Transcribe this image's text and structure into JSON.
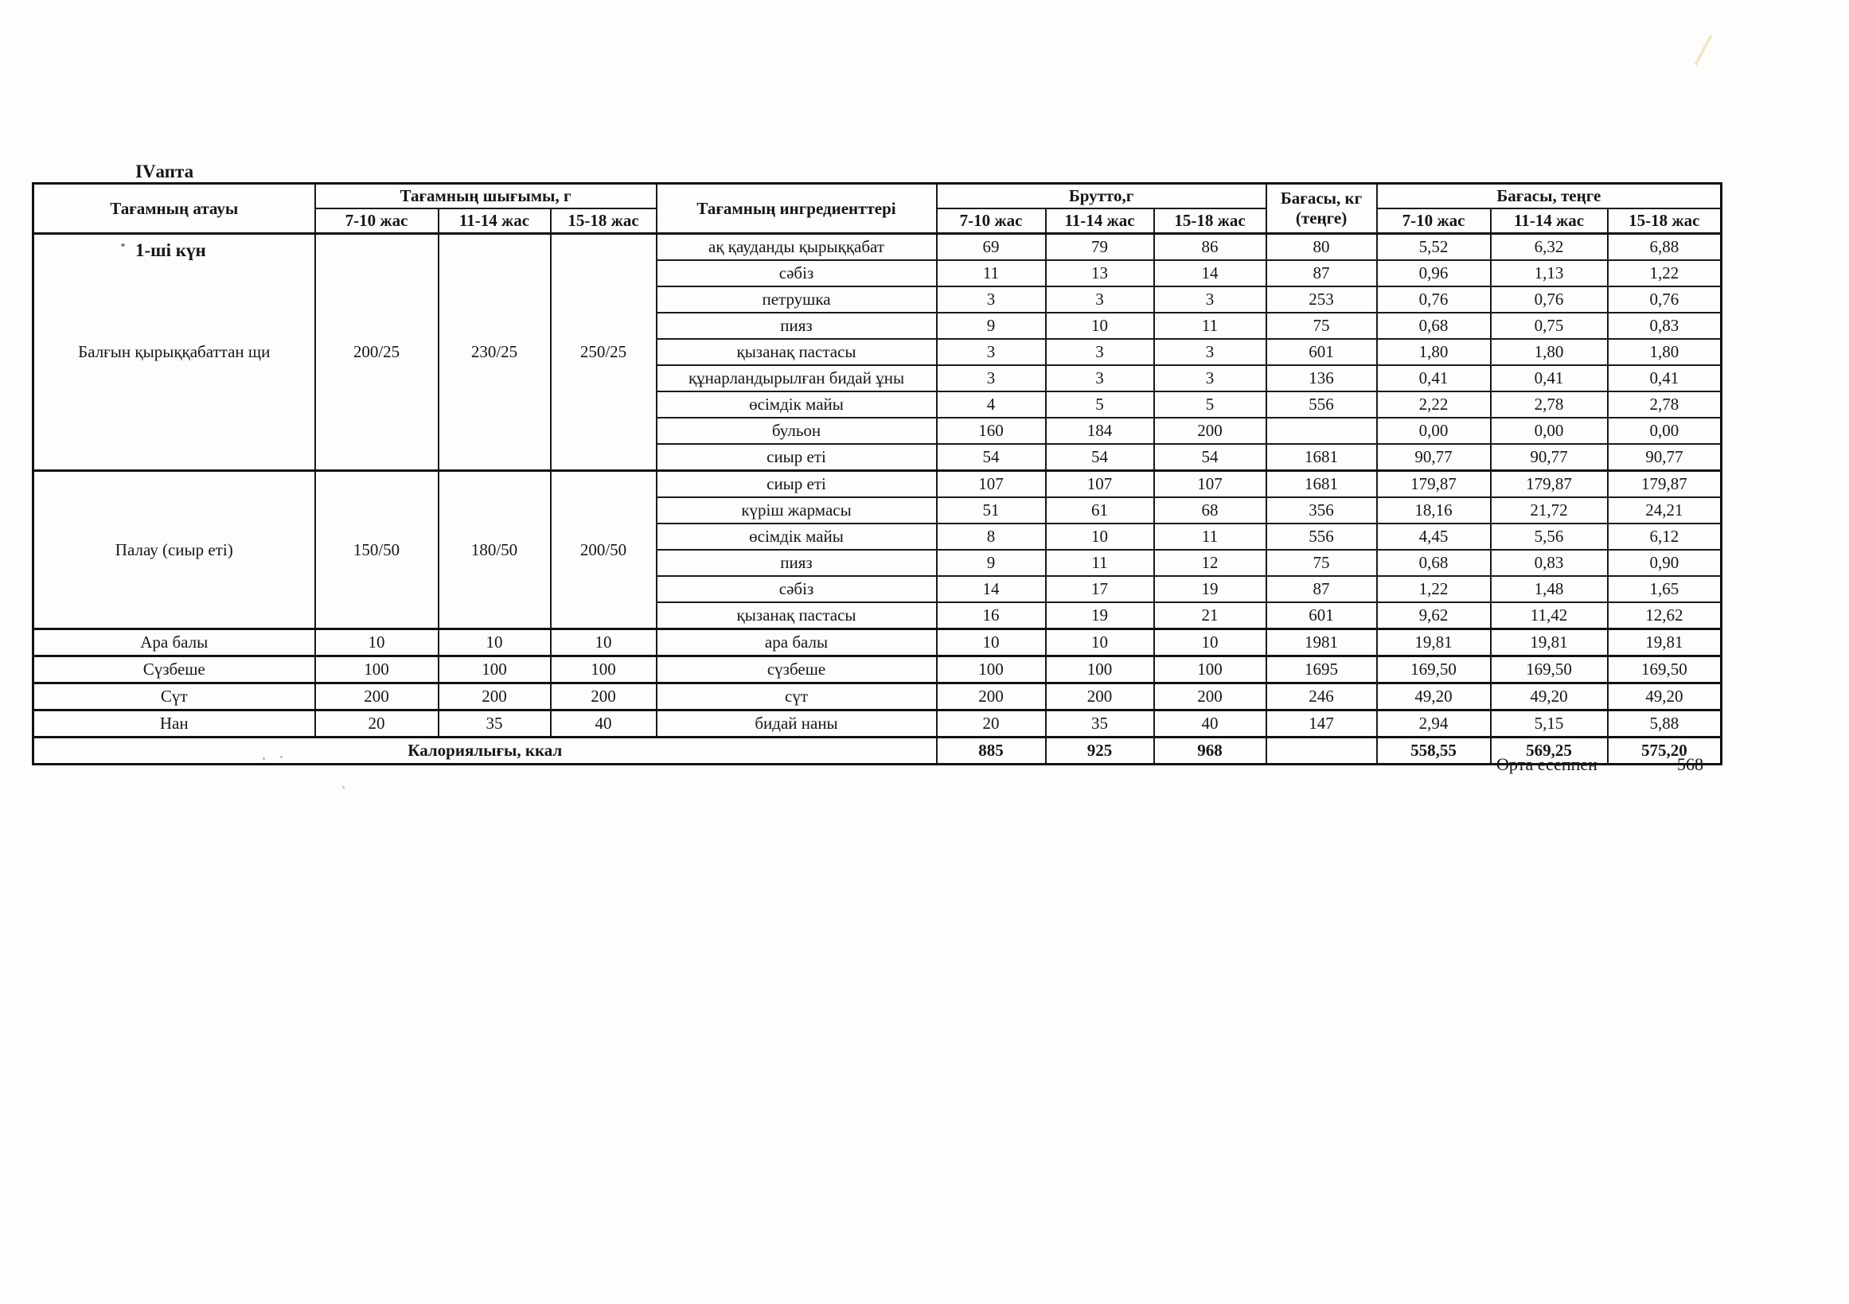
{
  "page": {
    "week_title": "IVапта",
    "day_title": "1-ші күн",
    "footer": {
      "label": "Орта есеппен",
      "value": "568"
    }
  },
  "table": {
    "headers": {
      "dish_name": "Тағамның атауы",
      "dish_output": "Тағамның шығымы, г",
      "ingredients": "Тағамның ингредиенттері",
      "gross": "Брутто,г",
      "price_kg_line1": "Бағасы, кг",
      "price_kg_line2": "(теңге)",
      "price_tenge": "Бағасы, теңге",
      "age_groups": [
        "7-10 жас",
        "11-14 жас",
        "15-18 жас"
      ]
    },
    "dishes": [
      {
        "name": "Балғын қырыққабаттан щи",
        "output": [
          "200/25",
          "230/25",
          "250/25"
        ],
        "ingredients": [
          {
            "name": "ақ қауданды қырыққабат",
            "gross": [
              "69",
              "79",
              "86"
            ],
            "price_kg": "80",
            "price": [
              "5,52",
              "6,32",
              "6,88"
            ]
          },
          {
            "name": "сәбіз",
            "gross": [
              "11",
              "13",
              "14"
            ],
            "price_kg": "87",
            "price": [
              "0,96",
              "1,13",
              "1,22"
            ]
          },
          {
            "name": "петрушка",
            "gross": [
              "3",
              "3",
              "3"
            ],
            "price_kg": "253",
            "price": [
              "0,76",
              "0,76",
              "0,76"
            ]
          },
          {
            "name": "пияз",
            "gross": [
              "9",
              "10",
              "11"
            ],
            "price_kg": "75",
            "price": [
              "0,68",
              "0,75",
              "0,83"
            ]
          },
          {
            "name": "қызанақ пастасы",
            "gross": [
              "3",
              "3",
              "3"
            ],
            "price_kg": "601",
            "price": [
              "1,80",
              "1,80",
              "1,80"
            ]
          },
          {
            "name": "құнарландырылған бидай ұны",
            "gross": [
              "3",
              "3",
              "3"
            ],
            "price_kg": "136",
            "price": [
              "0,41",
              "0,41",
              "0,41"
            ]
          },
          {
            "name": "өсімдік майы",
            "gross": [
              "4",
              "5",
              "5"
            ],
            "price_kg": "556",
            "price": [
              "2,22",
              "2,78",
              "2,78"
            ]
          },
          {
            "name": "бульон",
            "gross": [
              "160",
              "184",
              "200"
            ],
            "price_kg": "",
            "price": [
              "0,00",
              "0,00",
              "0,00"
            ]
          },
          {
            "name": "сиыр еті",
            "gross": [
              "54",
              "54",
              "54"
            ],
            "price_kg": "1681",
            "price": [
              "90,77",
              "90,77",
              "90,77"
            ]
          }
        ]
      },
      {
        "name": "Палау (сиыр еті)",
        "output": [
          "150/50",
          "180/50",
          "200/50"
        ],
        "ingredients": [
          {
            "name": "сиыр еті",
            "gross": [
              "107",
              "107",
              "107"
            ],
            "price_kg": "1681",
            "price": [
              "179,87",
              "179,87",
              "179,87"
            ]
          },
          {
            "name": "күріш жармасы",
            "gross": [
              "51",
              "61",
              "68"
            ],
            "price_kg": "356",
            "price": [
              "18,16",
              "21,72",
              "24,21"
            ]
          },
          {
            "name": "өсімдік майы",
            "gross": [
              "8",
              "10",
              "11"
            ],
            "price_kg": "556",
            "price": [
              "4,45",
              "5,56",
              "6,12"
            ]
          },
          {
            "name": "пияз",
            "gross": [
              "9",
              "11",
              "12"
            ],
            "price_kg": "75",
            "price": [
              "0,68",
              "0,83",
              "0,90"
            ]
          },
          {
            "name": "сәбіз",
            "gross": [
              "14",
              "17",
              "19"
            ],
            "price_kg": "87",
            "price": [
              "1,22",
              "1,48",
              "1,65"
            ]
          },
          {
            "name": "қызанақ пастасы",
            "gross": [
              "16",
              "19",
              "21"
            ],
            "price_kg": "601",
            "price": [
              "9,62",
              "11,42",
              "12,62"
            ]
          }
        ]
      },
      {
        "name": "Ара балы",
        "output": [
          "10",
          "10",
          "10"
        ],
        "ingredients": [
          {
            "name": "ара балы",
            "gross": [
              "10",
              "10",
              "10"
            ],
            "price_kg": "1981",
            "price": [
              "19,81",
              "19,81",
              "19,81"
            ]
          }
        ]
      },
      {
        "name": "Сүзбеше",
        "output": [
          "100",
          "100",
          "100"
        ],
        "ingredients": [
          {
            "name": "сүзбеше",
            "gross": [
              "100",
              "100",
              "100"
            ],
            "price_kg": "1695",
            "price": [
              "169,50",
              "169,50",
              "169,50"
            ]
          }
        ]
      },
      {
        "name": "Сүт",
        "output": [
          "200",
          "200",
          "200"
        ],
        "ingredients": [
          {
            "name": "сүт",
            "gross": [
              "200",
              "200",
              "200"
            ],
            "price_kg": "246",
            "price": [
              "49,20",
              "49,20",
              "49,20"
            ]
          }
        ]
      },
      {
        "name": "Нан",
        "output": [
          "20",
          "35",
          "40"
        ],
        "ingredients": [
          {
            "name": "бидай наны",
            "gross": [
              "20",
              "35",
              "40"
            ],
            "price_kg": "147",
            "price": [
              "2,94",
              "5,15",
              "5,88"
            ]
          }
        ]
      }
    ],
    "totals": {
      "label": "Калориялығы, ккал",
      "gross": [
        "885",
        "925",
        "968"
      ],
      "price_kg": "",
      "price": [
        "558,55",
        "569,25",
        "575,20"
      ]
    }
  }
}
